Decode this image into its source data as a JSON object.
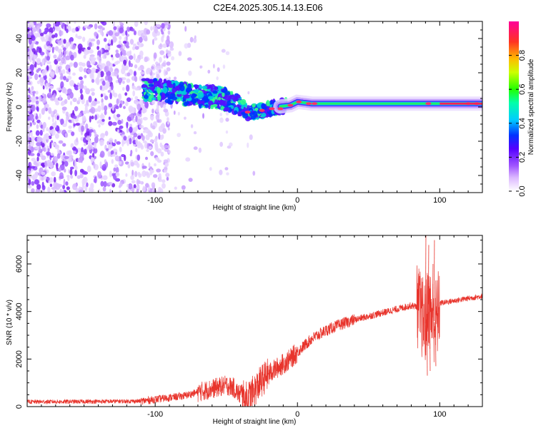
{
  "title": "C2E4.2025.305.14.13.E06",
  "chart_data": [
    {
      "type": "heatmap",
      "panel": "spectrogram",
      "xlabel": "Height of straight line (km)",
      "ylabel": "Frequency (Hz)",
      "xlim": [
        -190,
        130
      ],
      "ylim": [
        -50,
        50
      ],
      "xticks": [
        -100,
        0,
        100
      ],
      "yticks": [
        -40,
        -20,
        0,
        20,
        40
      ],
      "line_frequency_hz": 2,
      "colorbar": {
        "label": "Normalized spectral amplitude",
        "range": [
          0,
          1
        ],
        "ticks": [
          0.0,
          0.2,
          0.4,
          0.6,
          0.8
        ],
        "colors": [
          "#ffffff",
          "#cc99ff",
          "#8800ff",
          "#0000ff",
          "#00ffff",
          "#00ff00",
          "#ffff00",
          "#ff8800",
          "#ff0044",
          "#ff00aa"
        ]
      },
      "noise_region_x": [
        -190,
        -100
      ],
      "signal_track": [
        {
          "x": -105,
          "f": 10
        },
        {
          "x": -90,
          "f": 9
        },
        {
          "x": -75,
          "f": 7
        },
        {
          "x": -60,
          "f": 6
        },
        {
          "x": -50,
          "f": 4
        },
        {
          "x": -40,
          "f": 1
        },
        {
          "x": -35,
          "f": -3
        },
        {
          "x": -25,
          "f": -2
        },
        {
          "x": -15,
          "f": 0
        },
        {
          "x": -5,
          "f": 1
        },
        {
          "x": 0,
          "f": 3
        },
        {
          "x": 10,
          "f": 2
        },
        {
          "x": 20,
          "f": 2
        },
        {
          "x": 60,
          "f": 2
        },
        {
          "x": 100,
          "f": 2
        },
        {
          "x": 130,
          "f": 2
        }
      ]
    },
    {
      "type": "line",
      "panel": "snr",
      "xlabel": "Height of straight line (km)",
      "ylabel": "SNR (10 * v/v)",
      "xlim": [
        -190,
        130
      ],
      "ylim": [
        0,
        7200
      ],
      "xticks": [
        -100,
        0,
        100
      ],
      "yticks": [
        0,
        2000,
        4000,
        6000
      ],
      "color": "#e8342c",
      "series": [
        {
          "name": "SNR",
          "x": [
            -190,
            -150,
            -110,
            -100,
            -80,
            -70,
            -60,
            -50,
            -45,
            -40,
            -35,
            -30,
            -25,
            -20,
            -15,
            -10,
            -5,
            0,
            10,
            20,
            30,
            40,
            50,
            60,
            70,
            80,
            85,
            88,
            90,
            92,
            94,
            96,
            98,
            100,
            110,
            120,
            130
          ],
          "y": [
            200,
            210,
            230,
            300,
            450,
            600,
            750,
            900,
            800,
            450,
            350,
            700,
            1100,
            1400,
            1600,
            1800,
            2000,
            2300,
            2850,
            3200,
            3450,
            3650,
            3800,
            3950,
            4100,
            4250,
            4200,
            3700,
            3500,
            4300,
            3900,
            3600,
            3700,
            4350,
            4450,
            4550,
            4650
          ]
        }
      ]
    }
  ]
}
